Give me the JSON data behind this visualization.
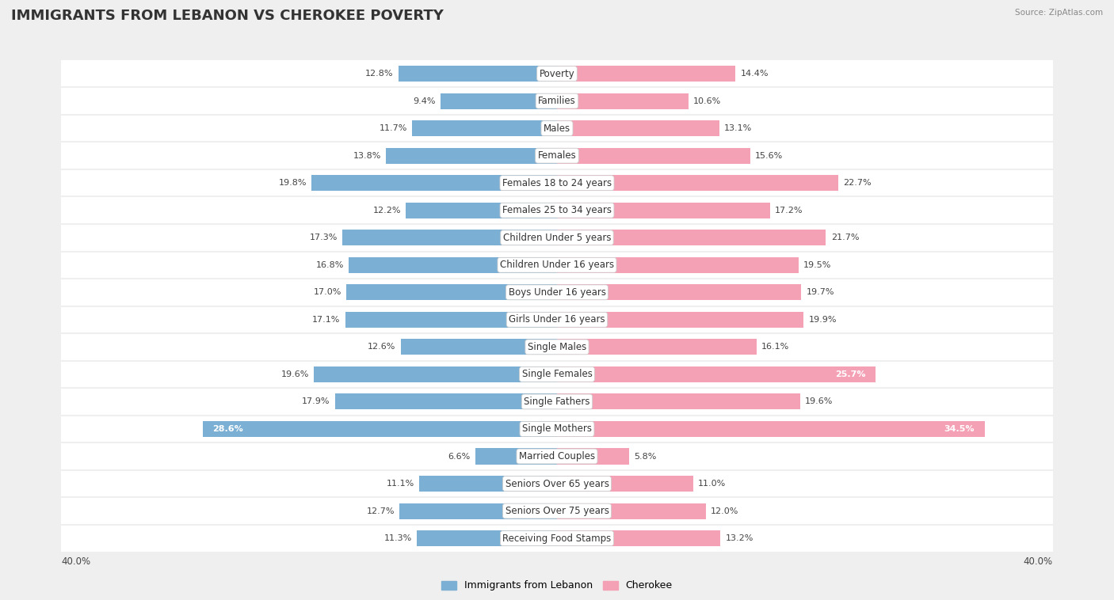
{
  "title": "IMMIGRANTS FROM LEBANON VS CHEROKEE POVERTY",
  "source": "Source: ZipAtlas.com",
  "categories": [
    "Poverty",
    "Families",
    "Males",
    "Females",
    "Females 18 to 24 years",
    "Females 25 to 34 years",
    "Children Under 5 years",
    "Children Under 16 years",
    "Boys Under 16 years",
    "Girls Under 16 years",
    "Single Males",
    "Single Females",
    "Single Fathers",
    "Single Mothers",
    "Married Couples",
    "Seniors Over 65 years",
    "Seniors Over 75 years",
    "Receiving Food Stamps"
  ],
  "lebanon_values": [
    12.8,
    9.4,
    11.7,
    13.8,
    19.8,
    12.2,
    17.3,
    16.8,
    17.0,
    17.1,
    12.6,
    19.6,
    17.9,
    28.6,
    6.6,
    11.1,
    12.7,
    11.3
  ],
  "cherokee_values": [
    14.4,
    10.6,
    13.1,
    15.6,
    22.7,
    17.2,
    21.7,
    19.5,
    19.7,
    19.9,
    16.1,
    25.7,
    19.6,
    34.5,
    5.8,
    11.0,
    12.0,
    13.2
  ],
  "lebanon_color": "#7bafd4",
  "cherokee_color": "#f4a0b5",
  "highlight_lebanon": [
    13
  ],
  "highlight_cherokee": [
    11,
    13
  ],
  "axis_max": 40.0,
  "background_color": "#efefef",
  "row_color": "#ffffff",
  "title_fontsize": 13,
  "label_fontsize": 8.5,
  "value_fontsize": 8.0,
  "legend_fontsize": 9,
  "bar_height": 0.58
}
